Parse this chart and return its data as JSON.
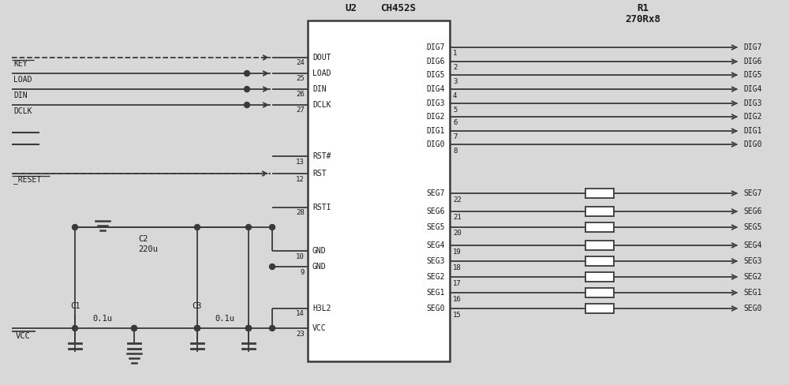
{
  "bg_color": "#e8e8e8",
  "line_color": "#3a3a3a",
  "text_color": "#1a1a1a",
  "chip_label": "CH452S",
  "chip_ref": "U2",
  "resistor_ref": "R1",
  "resistor_val": "270Rx8",
  "right_seg_pins": [
    "SEG0",
    "SEG1",
    "SEG2",
    "SEG3",
    "SEG4",
    "SEG5",
    "SEG6",
    "SEG7"
  ],
  "right_dig_pins": [
    "DIG0",
    "DIG1",
    "DIG2",
    "DIG3",
    "DIG4",
    "DIG5",
    "DIG6",
    "DIG7"
  ],
  "seg_pin_nums": [
    "15",
    "16",
    "17",
    "18",
    "19",
    "20",
    "21",
    "22"
  ],
  "dig_pin_nums": [
    "8",
    "7",
    "6",
    "5",
    "4",
    "3",
    "2",
    "1"
  ],
  "left_labels": [
    "VCC",
    "H3L2",
    "",
    "GND",
    "GND",
    "",
    "RSTI",
    "",
    "RST",
    "RST#",
    "",
    "",
    "",
    "DCLK",
    "DIN",
    "LOAD",
    "DOUT"
  ],
  "left_pin_nums": [
    "23",
    "14",
    "",
    "9",
    "10",
    "",
    "28",
    "",
    "12",
    "13",
    "",
    "",
    "",
    "27",
    "26",
    "25",
    "24"
  ]
}
